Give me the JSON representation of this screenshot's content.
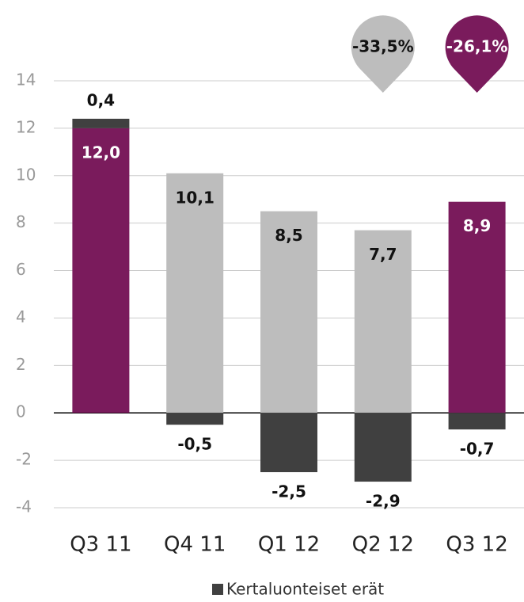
{
  "chart_data": {
    "type": "bar",
    "categories": [
      "Q3 11",
      "Q4 11",
      "Q1 12",
      "Q2 12",
      "Q3 12"
    ],
    "series": [
      {
        "colors": [
          "#7a1b5c",
          "#bdbdbd",
          "#bdbdbd",
          "#bdbdbd",
          "#7a1b5c"
        ],
        "values": [
          12.0,
          10.1,
          8.5,
          7.7,
          8.9
        ],
        "value_labels": [
          "12,0",
          "10,1",
          "8,5",
          "7,7",
          "8,9"
        ]
      },
      {
        "name": "Kertaluonteiset erät",
        "color": "#404040",
        "values": [
          0.4,
          -0.5,
          -2.5,
          -2.9,
          -0.7
        ],
        "value_labels": [
          "0,4",
          "-0,5",
          "-2,5",
          "-2,9",
          "-0,7"
        ]
      }
    ],
    "stacked": true,
    "ylim": [
      -4,
      14
    ],
    "yticks": [
      -4,
      -2,
      0,
      2,
      4,
      6,
      8,
      10,
      12,
      14
    ],
    "grid": true,
    "annotations": [
      {
        "category": "Q2 12",
        "text": "-33,5%",
        "color": "#bdbdbd"
      },
      {
        "category": "Q3 12",
        "text": "-26,1%",
        "color": "#7a1b5c"
      }
    ],
    "legend": "bottom"
  }
}
